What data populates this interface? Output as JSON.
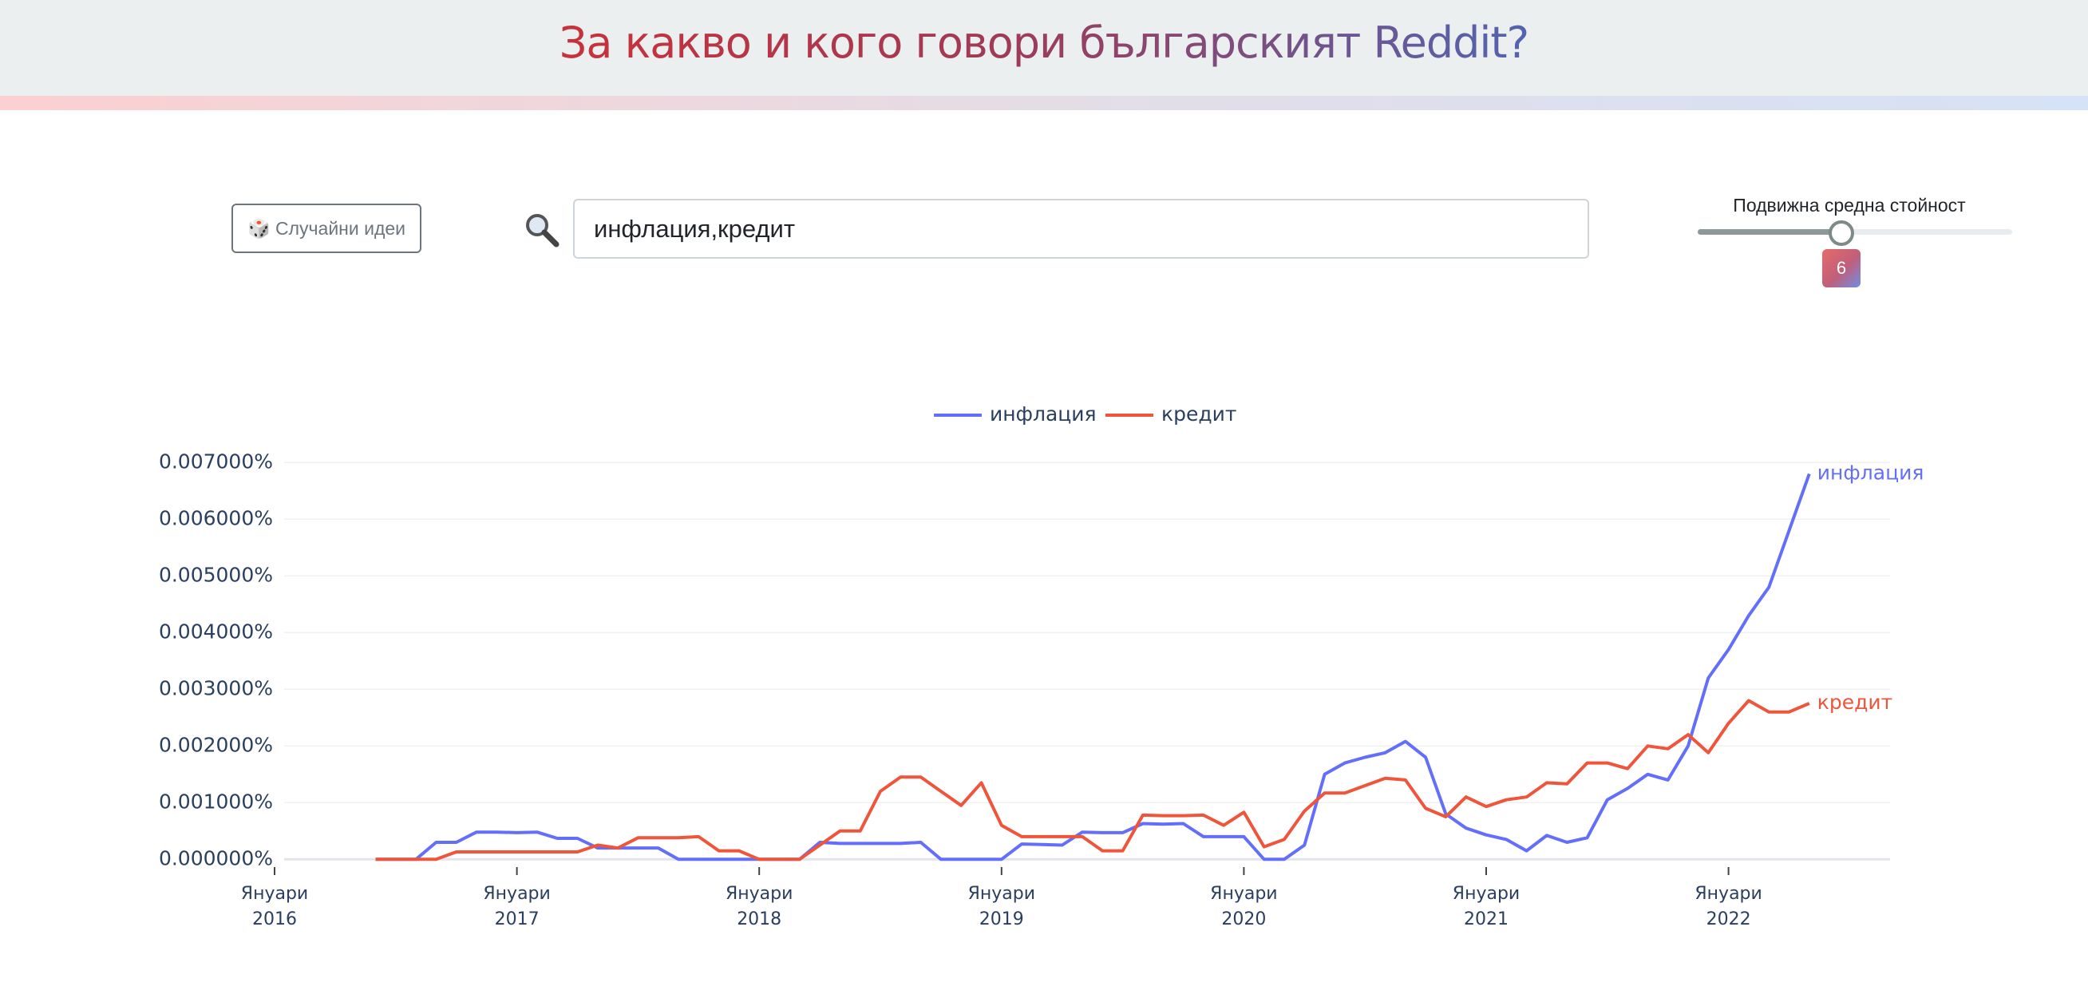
{
  "header": {
    "title": "За какво и кого говори българският Reddit?"
  },
  "controls": {
    "random_button": "🎲 Случайни идеи",
    "search_query": "инфлация,кредит",
    "moving_average_label": "Подвижна средна стойност",
    "moving_average_value": 6
  },
  "chart_data": {
    "type": "line",
    "x": [
      "2016-06",
      "2016-07",
      "2016-08",
      "2016-09",
      "2016-10",
      "2016-11",
      "2016-12",
      "2017-01",
      "2017-02",
      "2017-03",
      "2017-04",
      "2017-05",
      "2017-06",
      "2017-07",
      "2017-08",
      "2017-09",
      "2017-10",
      "2017-11",
      "2017-12",
      "2018-01",
      "2018-02",
      "2018-03",
      "2018-04",
      "2018-05",
      "2018-06",
      "2018-07",
      "2018-08",
      "2018-09",
      "2018-10",
      "2018-11",
      "2018-12",
      "2019-01",
      "2019-02",
      "2019-03",
      "2019-04",
      "2019-05",
      "2019-06",
      "2019-07",
      "2019-08",
      "2019-09",
      "2019-10",
      "2019-11",
      "2019-12",
      "2020-01",
      "2020-02",
      "2020-03",
      "2020-04",
      "2020-05",
      "2020-06",
      "2020-07",
      "2020-08",
      "2020-09",
      "2020-10",
      "2020-11",
      "2020-12",
      "2021-01",
      "2021-02",
      "2021-03",
      "2021-04",
      "2021-05",
      "2021-06",
      "2021-07",
      "2021-08",
      "2021-09",
      "2021-10",
      "2021-11",
      "2021-12",
      "2022-01",
      "2022-02",
      "2022-03",
      "2022-04",
      "2022-05"
    ],
    "series": [
      {
        "name": "инфлация",
        "color": "#636efa",
        "values": [
          0,
          0,
          0,
          0.0003,
          0.0003,
          0.00048,
          0.00048,
          0.00047,
          0.00048,
          0.00037,
          0.00037,
          0.0002,
          0.0002,
          0.0002,
          0.0002,
          0,
          0,
          0,
          0,
          0,
          0,
          0,
          0.0003,
          0.00028,
          0.00028,
          0.00028,
          0.00028,
          0.0003,
          0,
          0,
          0,
          0,
          0.00027,
          0.00026,
          0.00025,
          0.00048,
          0.00047,
          0.00047,
          0.00063,
          0.00062,
          0.00063,
          0.0004,
          0.0004,
          0.0004,
          0,
          0,
          0.00025,
          0.0015,
          0.0017,
          0.0018,
          0.00188,
          0.00208,
          0.0018,
          0.0008,
          0.00055,
          0.00043,
          0.00035,
          0.00015,
          0.00042,
          0.0003,
          0.00038,
          0.00105,
          0.00125,
          0.0015,
          0.0014,
          0.002,
          0.0032,
          0.0037,
          0.0043,
          0.0048,
          0.0058,
          0.0068
        ]
      },
      {
        "name": "кредит",
        "color": "#ef553b",
        "values": [
          0,
          0,
          0,
          0,
          0.00013,
          0.00013,
          0.00013,
          0.00013,
          0.00013,
          0.00013,
          0.00013,
          0.00025,
          0.0002,
          0.00038,
          0.00038,
          0.00038,
          0.0004,
          0.00015,
          0.00015,
          0,
          0,
          0,
          0.00025,
          0.0005,
          0.0005,
          0.0012,
          0.00145,
          0.00145,
          0.0012,
          0.00095,
          0.00135,
          0.0006,
          0.0004,
          0.0004,
          0.0004,
          0.0004,
          0.00015,
          0.00015,
          0.00078,
          0.00077,
          0.00077,
          0.00078,
          0.0006,
          0.00083,
          0.00022,
          0.00035,
          0.00085,
          0.00117,
          0.00117,
          0.0013,
          0.00143,
          0.0014,
          0.0009,
          0.00075,
          0.0011,
          0.00093,
          0.00105,
          0.0011,
          0.00135,
          0.00133,
          0.0017,
          0.0017,
          0.0016,
          0.002,
          0.00195,
          0.0022,
          0.00188,
          0.0024,
          0.0028,
          0.0026,
          0.0026,
          0.00275
        ]
      }
    ],
    "xlim": [
      "2016-01",
      "2022-09"
    ],
    "xticks": [
      {
        "value": "2016-01",
        "label": "Януари\n2016"
      },
      {
        "value": "2017-01",
        "label": "Януари\n2017"
      },
      {
        "value": "2018-01",
        "label": "Януари\n2018"
      },
      {
        "value": "2019-01",
        "label": "Януари\n2019"
      },
      {
        "value": "2020-01",
        "label": "Януари\n2020"
      },
      {
        "value": "2021-01",
        "label": "Януари\n2021"
      },
      {
        "value": "2022-01",
        "label": "Януари\n2022"
      }
    ],
    "ylim": [
      -0.00025,
      0.0073
    ],
    "yticks": [
      {
        "value": 0,
        "label": "0.000000%"
      },
      {
        "value": 0.001,
        "label": "0.001000%"
      },
      {
        "value": 0.002,
        "label": "0.002000%"
      },
      {
        "value": 0.003,
        "label": "0.003000%"
      },
      {
        "value": 0.004,
        "label": "0.004000%"
      },
      {
        "value": 0.005,
        "label": "0.005000%"
      },
      {
        "value": 0.006,
        "label": "0.006000%"
      },
      {
        "value": 0.007,
        "label": "0.007000%"
      }
    ],
    "grid": true,
    "legend_position": "top"
  }
}
